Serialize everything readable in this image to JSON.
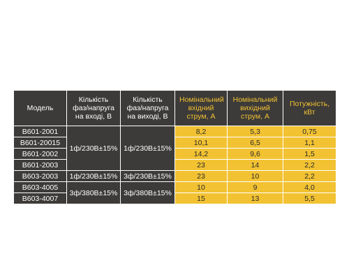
{
  "table": {
    "header": [
      "Модель",
      "Кількість фаз/напруга на вході, В",
      "Кількість фаз/напруга на виході, В",
      "Номінальний вхідний струм, А",
      "Номінальний вихідний струм, А",
      "Потужність, кВт"
    ],
    "models": [
      "В601-2001",
      "В601-20015",
      "В601-2002",
      "В601-2003",
      "В603-2003",
      "В603-4005",
      "В603-4007"
    ],
    "input_phase": [
      "1ф/230В±15%",
      "1ф/230В±15%",
      "3ф/380В±15%"
    ],
    "output_phase": [
      "1ф/230В±15%",
      "3ф/230В±15%",
      "3ф/380В±15%"
    ],
    "input_current": [
      "8,2",
      "10,1",
      "14,2",
      "23",
      "23",
      "10",
      "15"
    ],
    "output_current": [
      "5,3",
      "6,5",
      "9,6",
      "14",
      "10",
      "9",
      "13"
    ],
    "power": [
      "0,75",
      "1,1",
      "1,5",
      "2,2",
      "2,2",
      "4,0",
      "5,5"
    ]
  }
}
